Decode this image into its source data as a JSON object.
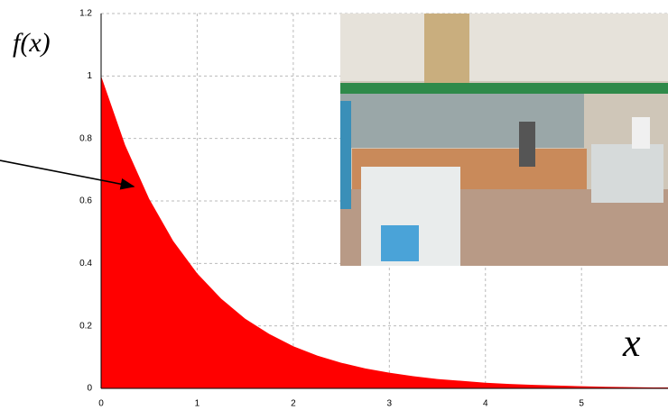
{
  "chart_data": {
    "type": "area",
    "x_label": "x",
    "y_label": "f(x)",
    "x": [
      0,
      0.25,
      0.5,
      0.75,
      1,
      1.25,
      1.5,
      1.75,
      2,
      2.25,
      2.5,
      2.75,
      3,
      3.25,
      3.5,
      3.75,
      4,
      4.25,
      4.5,
      4.75,
      5,
      5.25,
      5.5,
      5.75
    ],
    "values": [
      1,
      0.779,
      0.607,
      0.472,
      0.368,
      0.287,
      0.223,
      0.174,
      0.135,
      0.105,
      0.082,
      0.064,
      0.05,
      0.039,
      0.03,
      0.024,
      0.018,
      0.014,
      0.011,
      0.009,
      0.007,
      0.005,
      0.004,
      0.003
    ],
    "color": "#ff0000",
    "xlim": [
      0,
      5.9
    ],
    "ylim": [
      0,
      1.2
    ],
    "xticks": [
      0,
      1,
      2,
      3,
      4,
      5
    ],
    "yticks": [
      0,
      0.2,
      0.4,
      0.6,
      0.8,
      1,
      1.2
    ],
    "grid": true
  }
}
